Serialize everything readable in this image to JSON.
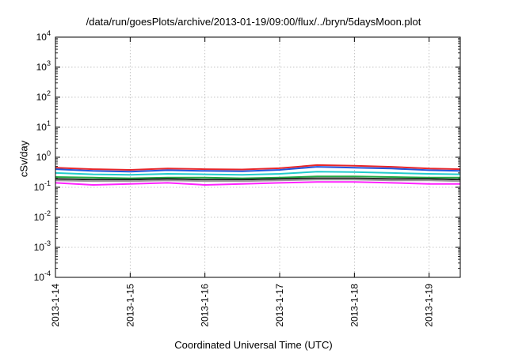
{
  "chart_data": {
    "type": "line",
    "title": "/data/run/goesPlots/archive/2013-01-19/09:00/flux/../bryn/5daysMoon.plot",
    "xlabel": "Coordinated Universal Time (UTC)",
    "ylabel": "cSv/day",
    "yscale": "log",
    "ylim": [
      0.0001,
      10000
    ],
    "yticks": [
      {
        "exp": 4,
        "base": "10",
        "sup": "4"
      },
      {
        "exp": 3,
        "base": "10",
        "sup": "3"
      },
      {
        "exp": 2,
        "base": "10",
        "sup": "2"
      },
      {
        "exp": 1,
        "base": "10",
        "sup": "1"
      },
      {
        "exp": 0,
        "base": "10",
        "sup": "0"
      },
      {
        "exp": -1,
        "base": "10",
        "sup": "-1"
      },
      {
        "exp": -2,
        "base": "10",
        "sup": "-2"
      },
      {
        "exp": -3,
        "base": "10",
        "sup": "-3"
      },
      {
        "exp": -4,
        "base": "10",
        "sup": "-4"
      }
    ],
    "xlim": [
      "2013-01-14",
      "2013-01-19T10:00"
    ],
    "xticks": [
      "2013-1-14",
      "2013-1-15",
      "2013-1-16",
      "2013-1-17",
      "2013-1-18",
      "2013-1-19"
    ],
    "grid": true,
    "x": [
      "2013-01-14",
      "2013-01-14T12:00",
      "2013-01-15",
      "2013-01-15T12:00",
      "2013-01-16",
      "2013-01-16T12:00",
      "2013-01-17",
      "2013-01-17T12:00",
      "2013-01-18",
      "2013-01-18T12:00",
      "2013-01-19",
      "2013-01-19T10:00"
    ],
    "series": [
      {
        "color": "#e8262a",
        "values": [
          0.45,
          0.4,
          0.38,
          0.42,
          0.4,
          0.39,
          0.43,
          0.55,
          0.52,
          0.48,
          0.42,
          0.4
        ]
      },
      {
        "color": "#2255dd",
        "values": [
          0.4,
          0.35,
          0.33,
          0.37,
          0.35,
          0.34,
          0.38,
          0.48,
          0.45,
          0.42,
          0.37,
          0.35
        ]
      },
      {
        "color": "#22cccc",
        "values": [
          0.3,
          0.27,
          0.26,
          0.28,
          0.27,
          0.26,
          0.28,
          0.33,
          0.32,
          0.3,
          0.28,
          0.27
        ]
      },
      {
        "color": "#22aa44",
        "values": [
          0.22,
          0.21,
          0.2,
          0.21,
          0.21,
          0.2,
          0.21,
          0.23,
          0.23,
          0.22,
          0.21,
          0.21
        ]
      },
      {
        "color": "#222222",
        "values": [
          0.19,
          0.18,
          0.18,
          0.19,
          0.18,
          0.18,
          0.19,
          0.2,
          0.2,
          0.19,
          0.19,
          0.18
        ]
      },
      {
        "color": "#9a9a9a",
        "values": [
          0.17,
          0.16,
          0.16,
          0.17,
          0.16,
          0.16,
          0.17,
          0.18,
          0.18,
          0.17,
          0.17,
          0.16
        ]
      },
      {
        "color": "#ff22ff",
        "values": [
          0.14,
          0.12,
          0.13,
          0.14,
          0.12,
          0.13,
          0.14,
          0.15,
          0.15,
          0.14,
          0.13,
          0.13
        ]
      }
    ]
  }
}
